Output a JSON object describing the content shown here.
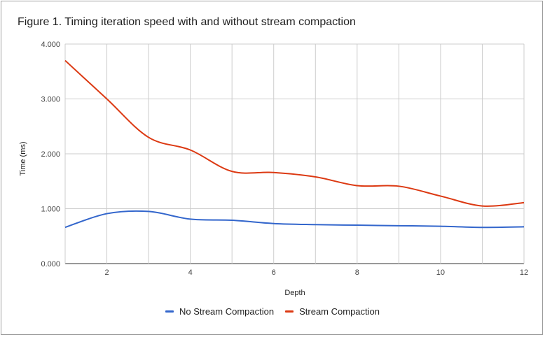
{
  "chart_data": {
    "type": "line",
    "title": "Figure 1. Timing iteration speed with and without stream compaction",
    "xlabel": "Depth",
    "ylabel": "Time (ms)",
    "xlim": [
      1,
      12
    ],
    "ylim": [
      0,
      4
    ],
    "x_ticks": [
      2,
      4,
      6,
      8,
      10,
      12
    ],
    "x_tick_labels": [
      "2",
      "4",
      "6",
      "8",
      "10",
      "12"
    ],
    "y_ticks": [
      0,
      1,
      2,
      3,
      4
    ],
    "y_tick_labels": [
      "0.000",
      "1.000",
      "2.000",
      "3.000",
      "4.000"
    ],
    "grid": true,
    "legend_position": "bottom",
    "x": [
      1,
      2,
      3,
      4,
      5,
      6,
      7,
      8,
      9,
      10,
      11,
      12
    ],
    "series": [
      {
        "name": "No Stream Compaction",
        "color": "#3366cc",
        "values": [
          0.66,
          0.91,
          0.95,
          0.81,
          0.79,
          0.73,
          0.71,
          0.7,
          0.69,
          0.68,
          0.66,
          0.67
        ]
      },
      {
        "name": "Stream Compaction",
        "color": "#dc3912",
        "values": [
          3.7,
          3.0,
          2.3,
          2.07,
          1.68,
          1.66,
          1.58,
          1.42,
          1.41,
          1.23,
          1.05,
          1.11
        ]
      }
    ]
  }
}
